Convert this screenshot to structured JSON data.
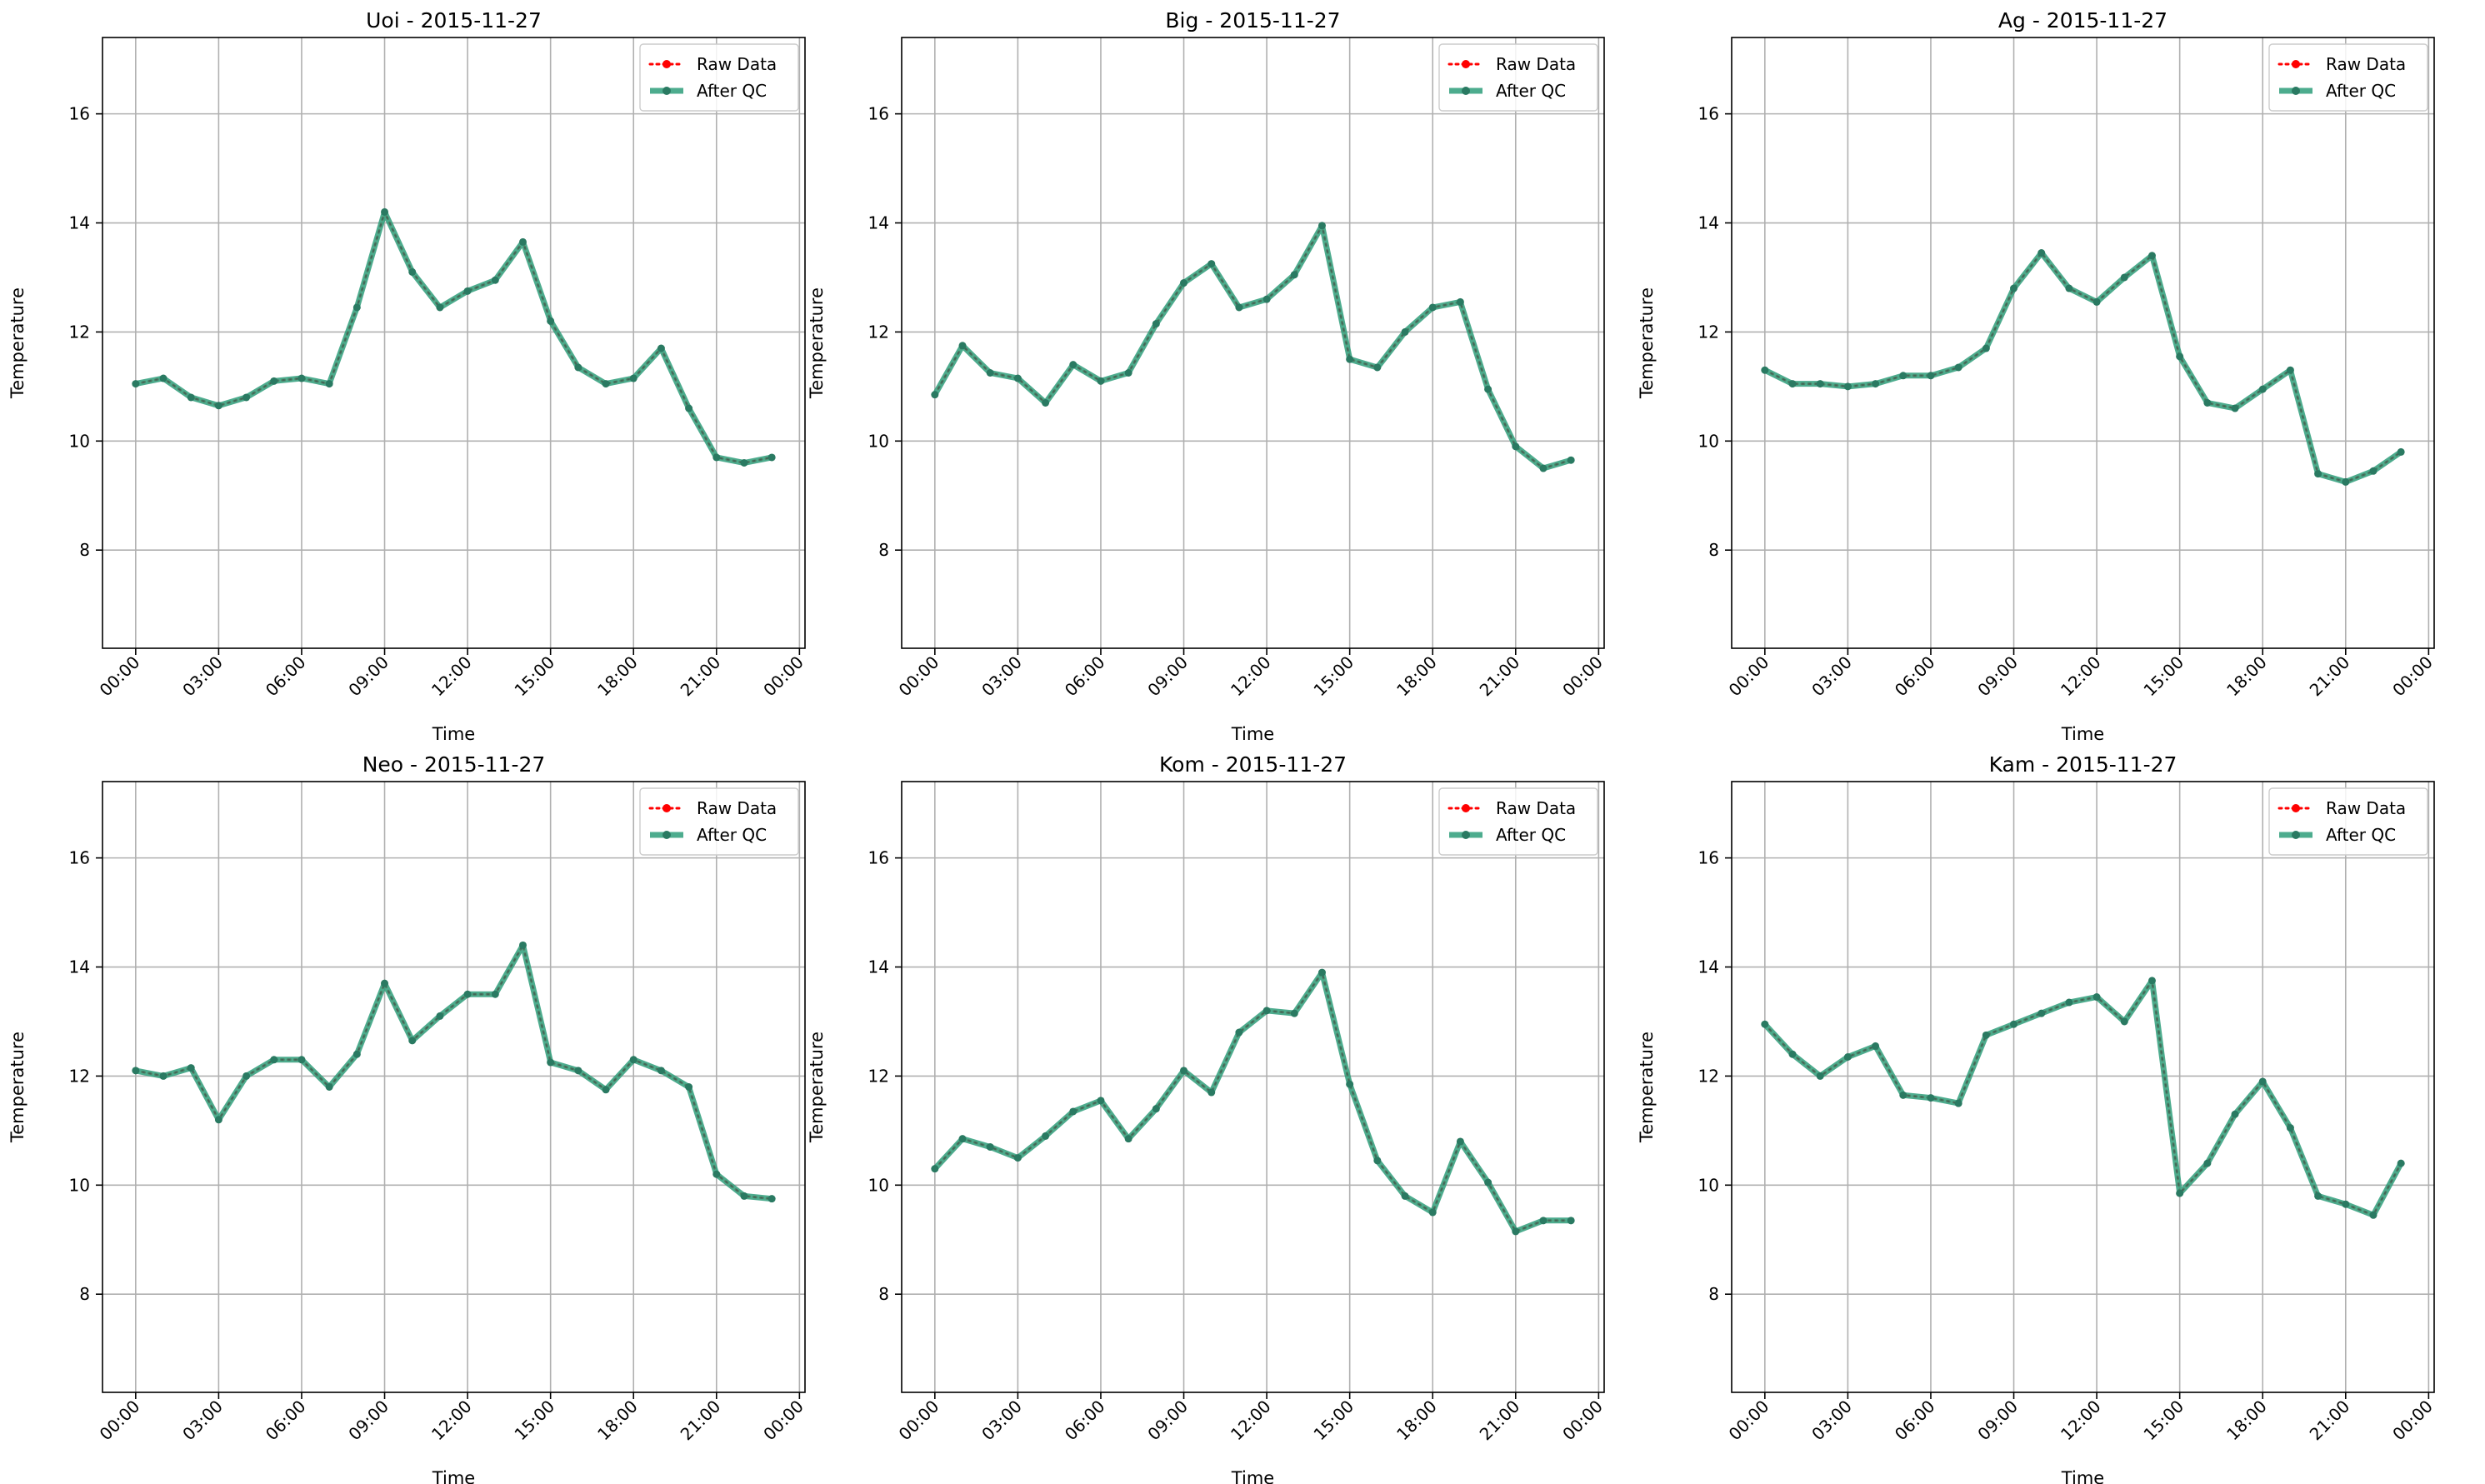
{
  "chart_data": [
    {
      "type": "line",
      "title": "Uoi - 2015-11-27",
      "xlabel": "Time",
      "ylabel": "Temperature",
      "x_ticks": [
        "00:00",
        "03:00",
        "06:00",
        "09:00",
        "12:00",
        "15:00",
        "18:00",
        "21:00",
        "00:00"
      ],
      "y_ticks": [
        "8",
        "10",
        "12",
        "14",
        "16"
      ],
      "ylim": [
        6.2,
        17.4
      ],
      "xlim_hours": [
        -1.2,
        24.2
      ],
      "legend": {
        "placement": "top-right",
        "entries": [
          "Raw Data",
          "After QC"
        ]
      },
      "grid": true,
      "x_hours": [
        0,
        1,
        2,
        3,
        4,
        5,
        6,
        7,
        8,
        9,
        10,
        11,
        12,
        13,
        14,
        15,
        16,
        17,
        18,
        19,
        20,
        21,
        22,
        23
      ],
      "series": [
        {
          "name": "Raw Data",
          "values": [
            11.05,
            11.15,
            10.8,
            10.65,
            10.8,
            11.1,
            11.15,
            11.05,
            12.45,
            14.2,
            13.1,
            12.45,
            12.75,
            12.95,
            13.65,
            12.2,
            11.35,
            11.05,
            11.15,
            11.7,
            10.6,
            9.7,
            9.6,
            9.7
          ]
        },
        {
          "name": "After QC",
          "values": [
            11.05,
            11.15,
            10.8,
            10.65,
            10.8,
            11.1,
            11.15,
            11.05,
            12.45,
            14.2,
            13.1,
            12.45,
            12.75,
            12.95,
            13.65,
            12.2,
            11.35,
            11.05,
            11.15,
            11.7,
            10.6,
            9.7,
            9.6,
            9.7
          ]
        }
      ]
    },
    {
      "type": "line",
      "title": "Big - 2015-11-27",
      "xlabel": "Time",
      "ylabel": "Temperature",
      "x_ticks": [
        "00:00",
        "03:00",
        "06:00",
        "09:00",
        "12:00",
        "15:00",
        "18:00",
        "21:00",
        "00:00"
      ],
      "y_ticks": [
        "8",
        "10",
        "12",
        "14",
        "16"
      ],
      "ylim": [
        6.2,
        17.4
      ],
      "xlim_hours": [
        -1.2,
        24.2
      ],
      "legend": {
        "placement": "top-right",
        "entries": [
          "Raw Data",
          "After QC"
        ]
      },
      "grid": true,
      "x_hours": [
        0,
        1,
        2,
        3,
        4,
        5,
        6,
        7,
        8,
        9,
        10,
        11,
        12,
        13,
        14,
        15,
        16,
        17,
        18,
        19,
        20,
        21,
        22,
        23
      ],
      "series": [
        {
          "name": "Raw Data",
          "values": [
            10.85,
            11.75,
            11.25,
            11.15,
            10.7,
            11.4,
            11.1,
            11.25,
            12.15,
            12.9,
            13.25,
            12.45,
            12.6,
            13.05,
            13.95,
            11.5,
            11.35,
            12.0,
            12.45,
            12.55,
            10.95,
            9.9,
            9.5,
            9.65
          ]
        },
        {
          "name": "After QC",
          "values": [
            10.85,
            11.75,
            11.25,
            11.15,
            10.7,
            11.4,
            11.1,
            11.25,
            12.15,
            12.9,
            13.25,
            12.45,
            12.6,
            13.05,
            13.95,
            11.5,
            11.35,
            12.0,
            12.45,
            12.55,
            10.95,
            9.9,
            9.5,
            9.65
          ]
        }
      ]
    },
    {
      "type": "line",
      "title": "Ag - 2015-11-27",
      "xlabel": "Time",
      "ylabel": "Temperature",
      "x_ticks": [
        "00:00",
        "03:00",
        "06:00",
        "09:00",
        "12:00",
        "15:00",
        "18:00",
        "21:00",
        "00:00"
      ],
      "y_ticks": [
        "8",
        "10",
        "12",
        "14",
        "16"
      ],
      "ylim": [
        6.2,
        17.4
      ],
      "xlim_hours": [
        -1.2,
        24.2
      ],
      "legend": {
        "placement": "top-right",
        "entries": [
          "Raw Data",
          "After QC"
        ]
      },
      "grid": true,
      "x_hours": [
        0,
        1,
        2,
        3,
        4,
        5,
        6,
        7,
        8,
        9,
        10,
        11,
        12,
        13,
        14,
        15,
        16,
        17,
        18,
        19,
        20,
        21,
        22,
        23
      ],
      "series": [
        {
          "name": "Raw Data",
          "values": [
            11.3,
            11.05,
            11.05,
            11.0,
            11.05,
            11.2,
            11.2,
            11.35,
            11.7,
            12.8,
            13.45,
            12.8,
            12.55,
            13.0,
            13.4,
            11.55,
            10.7,
            10.6,
            10.95,
            11.3,
            9.4,
            9.25,
            9.45,
            9.8
          ]
        },
        {
          "name": "After QC",
          "values": [
            11.3,
            11.05,
            11.05,
            11.0,
            11.05,
            11.2,
            11.2,
            11.35,
            11.7,
            12.8,
            13.45,
            12.8,
            12.55,
            13.0,
            13.4,
            11.55,
            10.7,
            10.6,
            10.95,
            11.3,
            9.4,
            9.25,
            9.45,
            9.8
          ]
        }
      ]
    },
    {
      "type": "line",
      "title": "Neo - 2015-11-27",
      "xlabel": "Time",
      "ylabel": "Temperature",
      "x_ticks": [
        "00:00",
        "03:00",
        "06:00",
        "09:00",
        "12:00",
        "15:00",
        "18:00",
        "21:00",
        "00:00"
      ],
      "y_ticks": [
        "8",
        "10",
        "12",
        "14",
        "16"
      ],
      "ylim": [
        6.2,
        17.4
      ],
      "xlim_hours": [
        -1.2,
        24.2
      ],
      "legend": {
        "placement": "top-right",
        "entries": [
          "Raw Data",
          "After QC"
        ]
      },
      "grid": true,
      "x_hours": [
        0,
        1,
        2,
        3,
        4,
        5,
        6,
        7,
        8,
        9,
        10,
        11,
        12,
        13,
        14,
        15,
        16,
        17,
        18,
        19,
        20,
        21,
        22,
        23
      ],
      "series": [
        {
          "name": "Raw Data",
          "values": [
            12.1,
            12.0,
            12.15,
            11.2,
            12.0,
            12.3,
            12.3,
            11.8,
            12.4,
            13.7,
            12.65,
            13.1,
            13.5,
            13.5,
            14.4,
            12.25,
            12.1,
            11.75,
            12.3,
            12.1,
            11.8,
            10.2,
            9.8,
            9.75
          ]
        },
        {
          "name": "After QC",
          "values": [
            12.1,
            12.0,
            12.15,
            11.2,
            12.0,
            12.3,
            12.3,
            11.8,
            12.4,
            13.7,
            12.65,
            13.1,
            13.5,
            13.5,
            14.4,
            12.25,
            12.1,
            11.75,
            12.3,
            12.1,
            11.8,
            10.2,
            9.8,
            9.75
          ]
        }
      ]
    },
    {
      "type": "line",
      "title": "Kom - 2015-11-27",
      "xlabel": "Time",
      "ylabel": "Temperature",
      "x_ticks": [
        "00:00",
        "03:00",
        "06:00",
        "09:00",
        "12:00",
        "15:00",
        "18:00",
        "21:00",
        "00:00"
      ],
      "y_ticks": [
        "8",
        "10",
        "12",
        "14",
        "16"
      ],
      "ylim": [
        6.2,
        17.4
      ],
      "xlim_hours": [
        -1.2,
        24.2
      ],
      "legend": {
        "placement": "top-right",
        "entries": [
          "Raw Data",
          "After QC"
        ]
      },
      "grid": true,
      "x_hours": [
        0,
        1,
        2,
        3,
        4,
        5,
        6,
        7,
        8,
        9,
        10,
        11,
        12,
        13,
        14,
        15,
        16,
        17,
        18,
        19,
        20,
        21,
        22,
        23
      ],
      "series": [
        {
          "name": "Raw Data",
          "values": [
            10.3,
            10.85,
            10.7,
            10.5,
            10.9,
            11.35,
            11.55,
            10.85,
            11.4,
            12.1,
            11.7,
            12.8,
            13.2,
            13.15,
            13.9,
            11.85,
            10.45,
            9.8,
            9.5,
            10.8,
            10.05,
            9.15,
            9.35,
            9.35
          ]
        },
        {
          "name": "After QC",
          "values": [
            10.3,
            10.85,
            10.7,
            10.5,
            10.9,
            11.35,
            11.55,
            10.85,
            11.4,
            12.1,
            11.7,
            12.8,
            13.2,
            13.15,
            13.9,
            11.85,
            10.45,
            9.8,
            9.5,
            10.8,
            10.05,
            9.15,
            9.35,
            9.35
          ]
        }
      ]
    },
    {
      "type": "line",
      "title": "Kam - 2015-11-27",
      "xlabel": "Time",
      "ylabel": "Temperature",
      "x_ticks": [
        "00:00",
        "03:00",
        "06:00",
        "09:00",
        "12:00",
        "15:00",
        "18:00",
        "21:00",
        "00:00"
      ],
      "y_ticks": [
        "8",
        "10",
        "12",
        "14",
        "16"
      ],
      "ylim": [
        6.2,
        17.4
      ],
      "xlim_hours": [
        -1.2,
        24.2
      ],
      "legend": {
        "placement": "top-right",
        "entries": [
          "Raw Data",
          "After QC"
        ]
      },
      "grid": true,
      "x_hours": [
        0,
        1,
        2,
        3,
        4,
        5,
        6,
        7,
        8,
        9,
        10,
        11,
        12,
        13,
        14,
        15,
        16,
        17,
        18,
        19,
        20,
        21,
        22,
        23
      ],
      "series": [
        {
          "name": "Raw Data",
          "values": [
            12.95,
            12.4,
            12.0,
            12.35,
            12.55,
            11.65,
            11.6,
            11.5,
            12.75,
            12.95,
            13.15,
            13.35,
            13.45,
            13.0,
            13.75,
            9.85,
            10.4,
            11.3,
            11.9,
            11.05,
            9.8,
            9.65,
            9.45,
            10.4
          ]
        },
        {
          "name": "After QC",
          "values": [
            12.95,
            12.4,
            12.0,
            12.35,
            12.55,
            11.65,
            11.6,
            11.5,
            12.75,
            12.95,
            13.15,
            13.35,
            13.45,
            13.0,
            13.75,
            9.85,
            10.4,
            11.3,
            11.9,
            11.05,
            9.8,
            9.65,
            9.45,
            10.4
          ]
        }
      ]
    }
  ],
  "colors": {
    "raw": "#ff0000",
    "qc": "#2e9e7a",
    "qc_marker": "#2a7a62",
    "grid": "#b0b0b0",
    "axis": "#000000"
  }
}
